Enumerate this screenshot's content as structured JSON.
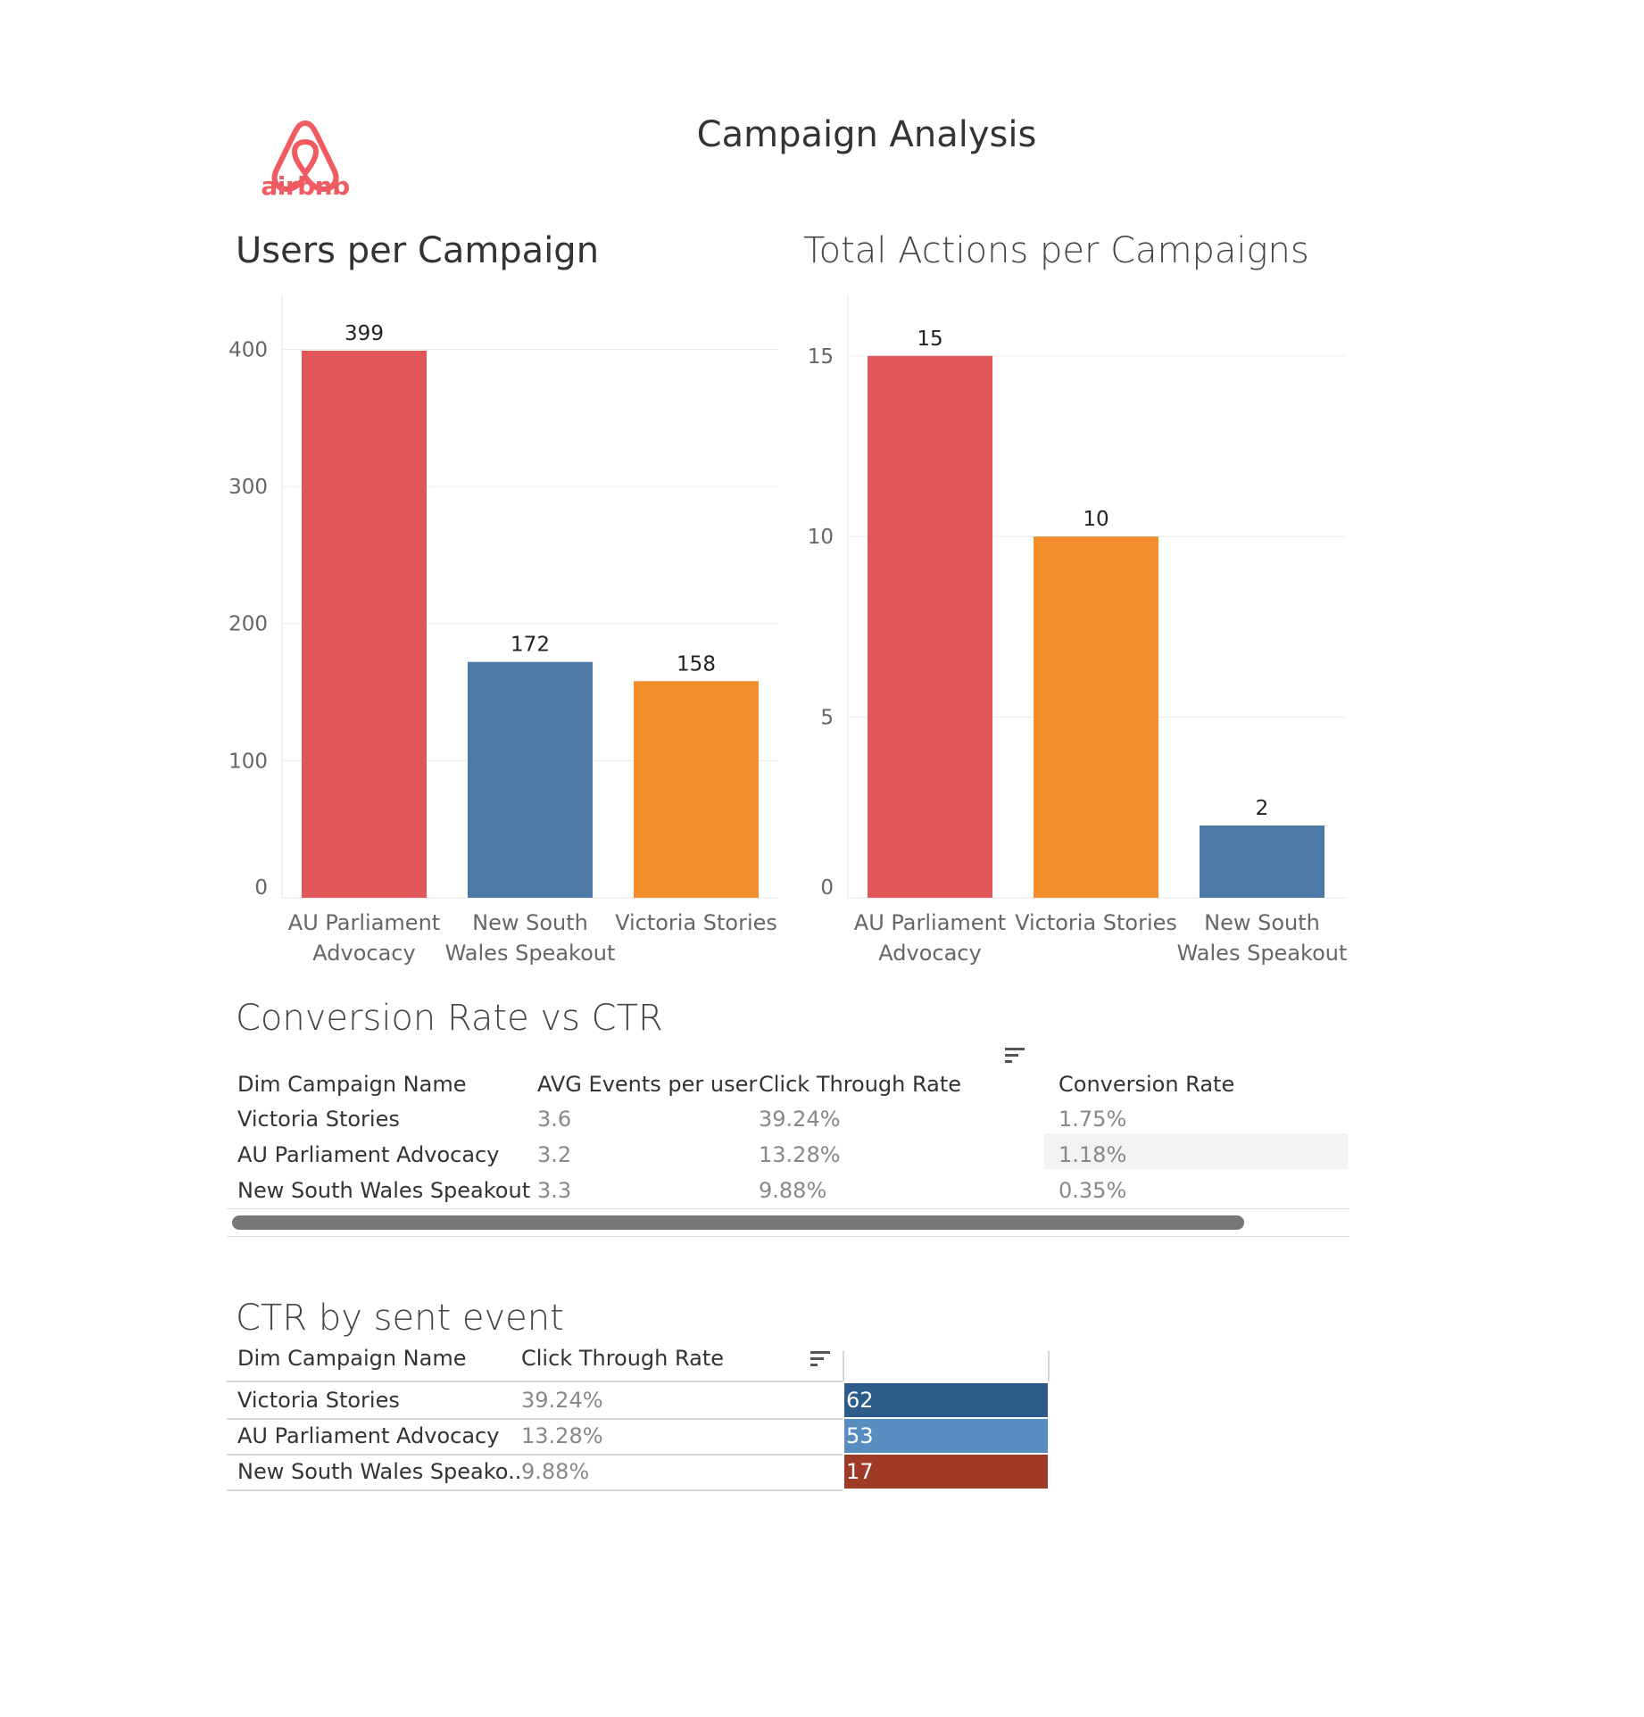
{
  "header": {
    "title": "Campaign Analysis",
    "logo_text": "airbnb",
    "logo_color": "#F05A61"
  },
  "chart_data": [
    {
      "type": "bar",
      "title": "Users per Campaign",
      "categories": [
        "AU Parliament Advocacy",
        "New South Wales Speakout",
        "Victoria Stories"
      ],
      "category_lines": [
        [
          "AU Parliament",
          "Advocacy"
        ],
        [
          "New South",
          "Wales Speakout"
        ],
        [
          "Victoria Stories"
        ]
      ],
      "values": [
        399,
        172,
        158
      ],
      "colors": [
        "#E15759",
        "#4E79A7",
        "#F28E2B"
      ],
      "yticks": [
        0,
        100,
        200,
        300,
        400
      ],
      "ylim": [
        0,
        440
      ],
      "grid": true
    },
    {
      "type": "bar",
      "title": "Total Actions per Campaigns",
      "categories": [
        "AU Parliament Advocacy",
        "Victoria Stories",
        "New South Wales Speakout"
      ],
      "category_lines": [
        [
          "AU Parliament",
          "Advocacy"
        ],
        [
          "Victoria Stories"
        ],
        [
          "New South",
          "Wales Speakout"
        ]
      ],
      "values": [
        15,
        10,
        2
      ],
      "colors": [
        "#E15759",
        "#F28E2B",
        "#4E79A7"
      ],
      "yticks": [
        0,
        5,
        10,
        15
      ],
      "ylim": [
        0,
        16.7
      ],
      "grid": true
    },
    {
      "type": "table",
      "title": "Conversion Rate vs CTR",
      "columns": [
        "Dim Campaign Name",
        "AVG Events per user",
        "Click Through Rate",
        "Conversion Rate"
      ],
      "rows": [
        [
          "Victoria Stories",
          "3.6",
          "39.24%",
          "1.75%"
        ],
        [
          "AU Parliament Advocacy",
          "3.2",
          "13.28%",
          "1.18%"
        ],
        [
          "New South Wales Speakout",
          "3.3",
          "9.88%",
          "0.35%"
        ]
      ]
    },
    {
      "type": "heatmap",
      "title": "CTR by sent event",
      "columns": [
        "Dim Campaign Name",
        "Click Through Rate"
      ],
      "rows": [
        {
          "name": "Victoria Stories",
          "ctr": "39.24%",
          "value": "62",
          "color": "#2B5C8A"
        },
        {
          "name": "AU Parliament Advocacy",
          "ctr": "13.28%",
          "value": "53",
          "color": "#5A8DBF"
        },
        {
          "name": "New South Wales Speako..",
          "ctr": "9.88%",
          "value": "17",
          "color": "#9E3A26"
        }
      ]
    }
  ]
}
